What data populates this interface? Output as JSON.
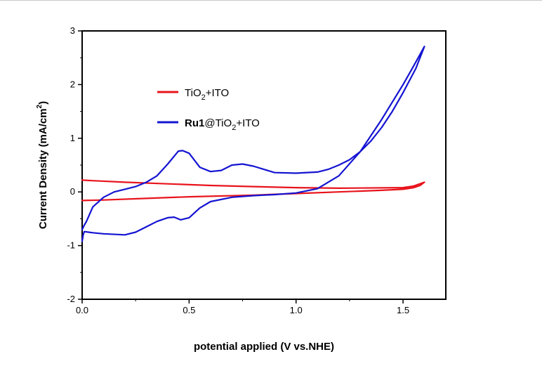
{
  "chart_data": {
    "type": "line",
    "xlabel": "potential applied (V vs.NHE)",
    "ylabel_parts": {
      "main": "Current Density (mA/cm",
      "sup": "2",
      "end": ")"
    },
    "xlim": [
      0,
      1.7
    ],
    "ylim": [
      -2,
      3
    ],
    "x_ticks": [
      {
        "value": 0.0,
        "label": "0.0"
      },
      {
        "value": 0.5,
        "label": "0.5"
      },
      {
        "value": 1.0,
        "label": "1.0"
      },
      {
        "value": 1.5,
        "label": "1.5"
      }
    ],
    "y_ticks": [
      {
        "value": -2,
        "label": "-2"
      },
      {
        "value": -1,
        "label": "-1"
      },
      {
        "value": 0,
        "label": "0"
      },
      {
        "value": 1,
        "label": "1"
      },
      {
        "value": 2,
        "label": "2"
      },
      {
        "value": 3,
        "label": "3"
      }
    ],
    "grid": false,
    "legend_placement": "upper-left",
    "series": [
      {
        "legend": {
          "bold": "",
          "pre": "TiO",
          "sub": "2",
          "post": "+ITO"
        },
        "color": "#e8141c",
        "x": [
          0.0,
          0.1,
          0.3,
          0.5,
          0.8,
          1.0,
          1.2,
          1.4,
          1.5,
          1.55,
          1.58,
          1.6,
          1.55,
          1.5,
          1.2,
          1.0,
          0.8,
          0.6,
          0.4,
          0.2,
          0.05,
          0.0
        ],
        "y": [
          -0.16,
          -0.15,
          -0.12,
          -0.09,
          -0.06,
          -0.03,
          0.0,
          0.03,
          0.05,
          0.08,
          0.12,
          0.18,
          0.11,
          0.08,
          0.07,
          0.08,
          0.1,
          0.12,
          0.15,
          0.18,
          0.21,
          0.22
        ]
      },
      {
        "legend": {
          "bold": "Ru1",
          "pre": "@TiO",
          "sub": "2",
          "post": "+ITO"
        },
        "color": "#1414d2",
        "x": [
          0.0,
          0.005,
          0.01,
          0.05,
          0.1,
          0.2,
          0.25,
          0.3,
          0.35,
          0.4,
          0.43,
          0.46,
          0.5,
          0.55,
          0.6,
          0.7,
          0.8,
          0.9,
          1.0,
          1.1,
          1.2,
          1.3,
          1.4,
          1.5,
          1.55,
          1.6,
          1.56,
          1.5,
          1.45,
          1.4,
          1.35,
          1.3,
          1.25,
          1.2,
          1.15,
          1.1,
          1.0,
          0.9,
          0.8,
          0.75,
          0.7,
          0.65,
          0.6,
          0.55,
          0.5,
          0.47,
          0.45,
          0.4,
          0.35,
          0.3,
          0.25,
          0.2,
          0.15,
          0.1,
          0.05,
          0.02,
          0.01,
          0.0
        ],
        "y": [
          -0.92,
          -0.8,
          -0.74,
          -0.76,
          -0.78,
          -0.8,
          -0.75,
          -0.65,
          -0.55,
          -0.48,
          -0.47,
          -0.52,
          -0.48,
          -0.3,
          -0.18,
          -0.1,
          -0.07,
          -0.05,
          -0.02,
          0.06,
          0.3,
          0.75,
          1.35,
          2.0,
          2.35,
          2.71,
          2.3,
          1.85,
          1.5,
          1.2,
          0.95,
          0.75,
          0.6,
          0.5,
          0.42,
          0.37,
          0.35,
          0.36,
          0.48,
          0.52,
          0.5,
          0.4,
          0.38,
          0.46,
          0.72,
          0.77,
          0.76,
          0.52,
          0.3,
          0.18,
          0.1,
          0.05,
          0.0,
          -0.1,
          -0.28,
          -0.55,
          -0.62,
          -0.7
        ]
      }
    ]
  }
}
